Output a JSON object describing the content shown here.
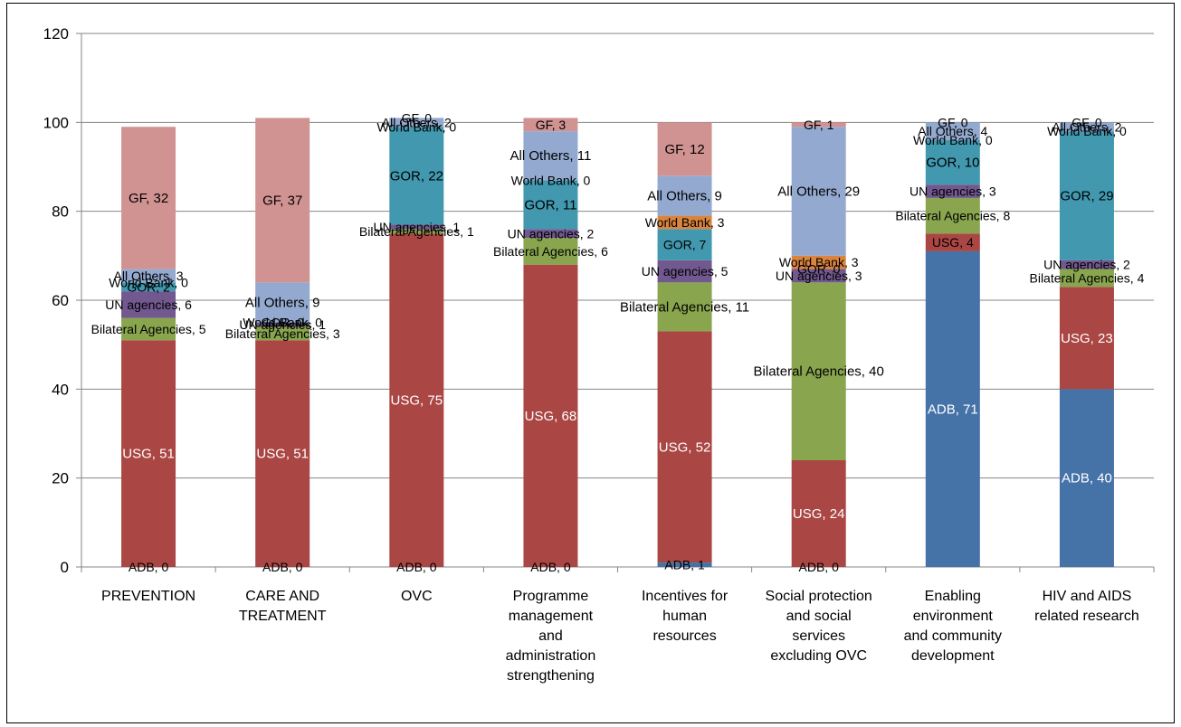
{
  "chart_data": {
    "type": "bar",
    "stacked": true,
    "ylim": [
      0,
      120
    ],
    "yticks": [
      0,
      20,
      40,
      60,
      80,
      100,
      120
    ],
    "grid": true,
    "legend": "none",
    "categories": [
      [
        "PREVENTION"
      ],
      [
        "CARE AND",
        "TREATMENT"
      ],
      [
        "OVC"
      ],
      [
        "Programme",
        "management",
        "and",
        "administration",
        "strengthening"
      ],
      [
        "Incentives for",
        "human",
        "resources"
      ],
      [
        "Social protection",
        "and social",
        "services",
        "excluding OVC"
      ],
      [
        "Enabling",
        "environment",
        "and community",
        "development"
      ],
      [
        "HIV and AIDS",
        "related research"
      ]
    ],
    "series": [
      {
        "name": "ADB",
        "color": "#4572A7",
        "values": [
          0,
          0,
          0,
          0,
          1,
          0,
          71,
          40
        ]
      },
      {
        "name": "USG",
        "color": "#AA4643",
        "values": [
          51,
          51,
          75,
          68,
          52,
          24,
          4,
          23
        ]
      },
      {
        "name": "Bilateral Agencies",
        "color": "#89A54E",
        "values": [
          5,
          3,
          1,
          6,
          11,
          40,
          8,
          4
        ]
      },
      {
        "name": "UN agencies",
        "color": "#71588F",
        "values": [
          6,
          1,
          1,
          2,
          5,
          3,
          3,
          2
        ]
      },
      {
        "name": "GOR",
        "color": "#4198AF",
        "values": [
          2,
          0,
          22,
          11,
          7,
          0,
          10,
          29
        ]
      },
      {
        "name": "World Bank",
        "color": "#DB843D",
        "values": [
          0,
          0,
          0,
          0,
          3,
          3,
          0,
          0
        ]
      },
      {
        "name": "All Others",
        "color": "#93A9CF",
        "values": [
          3,
          9,
          2,
          11,
          9,
          29,
          4,
          2
        ]
      },
      {
        "name": "GF",
        "color": "#D19392",
        "values": [
          32,
          37,
          0,
          3,
          12,
          1,
          0,
          0
        ]
      }
    ]
  }
}
